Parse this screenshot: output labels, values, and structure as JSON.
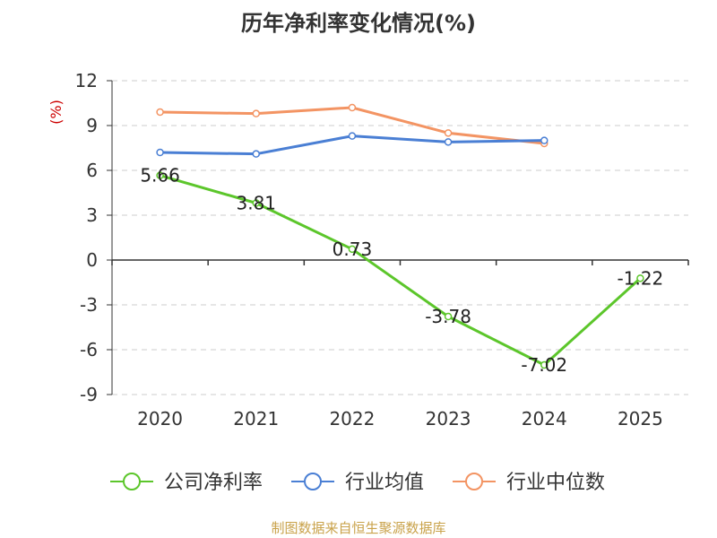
{
  "title": "历年净利率变化情况(%)",
  "unit": "(%)",
  "source": "制图数据来自恒生聚源数据库",
  "colors": {
    "company": "#5cc62b",
    "avg": "#4a7fd4",
    "median": "#f39463",
    "grid": "#cccccc",
    "axis": "#333333"
  },
  "chart_data": {
    "type": "line",
    "title": "历年净利率变化情况(%)",
    "xlabel": "",
    "ylabel": "(%)",
    "categories": [
      "2020",
      "2021",
      "2022",
      "2023",
      "2024",
      "2025"
    ],
    "ylim": [
      -9,
      12
    ],
    "yticks": [
      12,
      9,
      6,
      3,
      0,
      -3,
      -6,
      -9
    ],
    "grid": true,
    "legend_position": "bottom",
    "series": [
      {
        "name": "公司净利率",
        "key": "company",
        "values": [
          5.66,
          3.81,
          0.73,
          -3.78,
          -7.02,
          -1.22
        ],
        "labels": [
          "5.66",
          "3.81",
          "0.73",
          "-3.78",
          "-7.02",
          "-1.22"
        ]
      },
      {
        "name": "行业均值",
        "key": "avg",
        "values": [
          7.2,
          7.1,
          8.3,
          7.9,
          8.0,
          null
        ]
      },
      {
        "name": "行业中位数",
        "key": "median",
        "values": [
          9.9,
          9.8,
          10.2,
          8.5,
          7.8,
          null
        ]
      }
    ]
  }
}
